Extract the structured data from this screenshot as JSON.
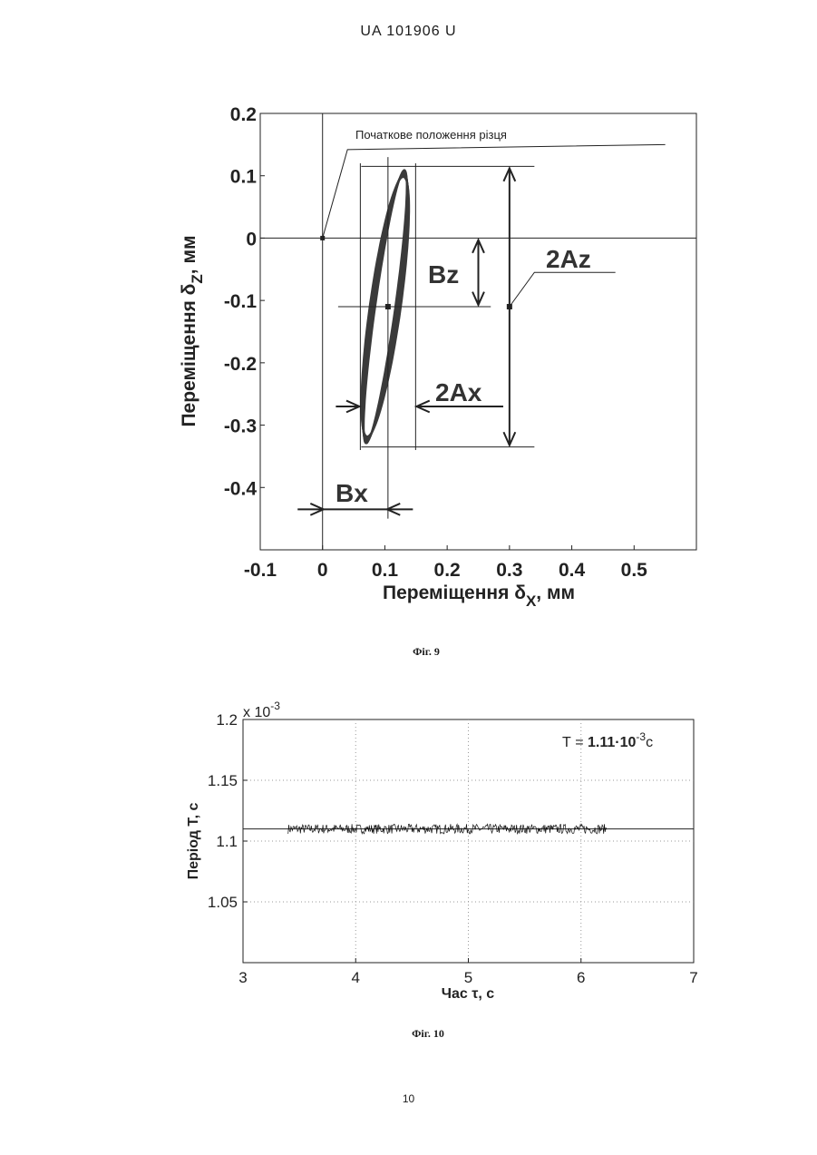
{
  "header": {
    "doc_number": "UA   101906   U"
  },
  "page_number": "10",
  "figures": [
    {
      "caption": "Фіг. 9"
    },
    {
      "caption": "Фіг. 10"
    }
  ],
  "chart_data": [
    {
      "type": "line",
      "xlabel_main": "Переміщення δ",
      "xlabel_sub": "X",
      "xlabel_unit": ", мм",
      "ylabel_main": "Переміщення δ",
      "ylabel_sub": "Z",
      "ylabel_unit": ", мм",
      "xlim": [
        -0.1,
        0.6
      ],
      "ylim": [
        -0.5,
        0.2
      ],
      "xticks": [
        "-0.1",
        "0",
        "0.1",
        "0.2",
        "0.3",
        "0.4",
        "0.5"
      ],
      "yticks": [
        "0.2",
        "0.1",
        "0",
        "-0.1",
        "-0.2",
        "-0.3",
        "-0.4"
      ],
      "grid": false,
      "annotations": {
        "start_label": "Початкове положення різця",
        "bz": "Bz",
        "two_az": "2Az",
        "two_ax": "2Ax",
        "bx": "Bx"
      },
      "start_point": {
        "x": 0,
        "y": 0
      },
      "center_point": {
        "x": 0.105,
        "y": -0.11
      },
      "ellipse_extent": {
        "x_min": 0.065,
        "x_max": 0.145,
        "y_min": -0.335,
        "y_max": 0.115
      }
    },
    {
      "type": "line",
      "xlabel": "Час τ, с",
      "ylabel": "Період Т, с",
      "exponent_label": "x 10",
      "exponent_power": "-3",
      "xlim": [
        3,
        7
      ],
      "ylim": [
        1.0,
        1.2
      ],
      "xticks": [
        "3",
        "4",
        "5",
        "6",
        "7"
      ],
      "yticks": [
        "1.2",
        "1.15",
        "1.1",
        "1.05"
      ],
      "grid": true,
      "mean_value": 1.11,
      "signal_x_range": [
        3.4,
        6.23
      ],
      "noise_amplitude": 0.005,
      "annotation_main": "Т = ",
      "annotation_value": "1.11·10",
      "annotation_power": "-3",
      "annotation_unit": "с"
    }
  ]
}
